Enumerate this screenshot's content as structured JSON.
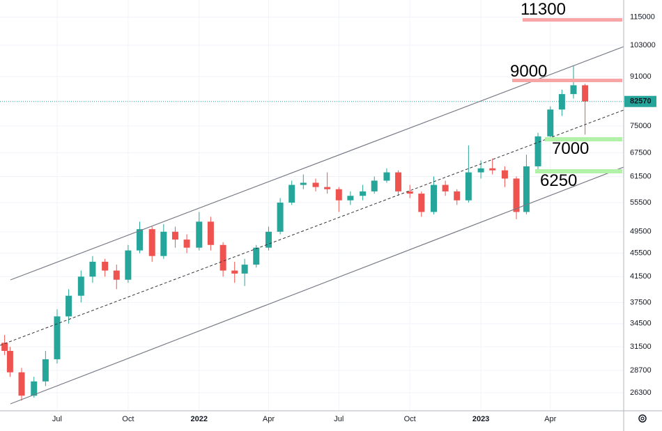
{
  "chart_data": {
    "type": "candlestick",
    "x": [
      "2021-04-24",
      "2021-05-01",
      "2021-05-16",
      "2021-06-01",
      "2021-06-16",
      "2021-07-01",
      "2021-07-16",
      "2021-08-01",
      "2021-08-16",
      "2021-09-01",
      "2021-09-16",
      "2021-10-01",
      "2021-10-16",
      "2021-11-01",
      "2021-11-16",
      "2021-12-01",
      "2021-12-16",
      "2022-01-01",
      "2022-01-16",
      "2022-02-01",
      "2022-02-16",
      "2022-03-01",
      "2022-03-16",
      "2022-04-01",
      "2022-04-16",
      "2022-05-01",
      "2022-05-16",
      "2022-06-01",
      "2022-06-16",
      "2022-07-01",
      "2022-07-16",
      "2022-08-01",
      "2022-08-16",
      "2022-09-01",
      "2022-09-16",
      "2022-10-01",
      "2022-10-16",
      "2022-11-01",
      "2022-11-16",
      "2022-12-01",
      "2022-12-16",
      "2023-01-01",
      "2023-01-16",
      "2023-02-01",
      "2023-02-16",
      "2023-03-01",
      "2023-03-16",
      "2023-04-01",
      "2023-04-16",
      "2023-05-01",
      "2023-05-16"
    ],
    "open": [
      32000,
      31000,
      28500,
      26000,
      27500,
      30000,
      35500,
      38500,
      41500,
      44000,
      42500,
      41000,
      46000,
      50000,
      45000,
      49500,
      48000,
      46500,
      51500,
      47000,
      42500,
      42000,
      43500,
      46500,
      49500,
      55500,
      59500,
      60000,
      59000,
      58500,
      56000,
      57000,
      58000,
      60500,
      62500,
      58000,
      57500,
      53500,
      59500,
      58000,
      56000,
      62500,
      63500,
      63000,
      61000,
      53500,
      64000,
      72000,
      80000,
      85000,
      88000
    ],
    "high": [
      33000,
      31500,
      29000,
      28000,
      31000,
      36500,
      39500,
      42500,
      45000,
      44500,
      43500,
      47000,
      51500,
      50500,
      51000,
      50500,
      49000,
      53500,
      52500,
      47500,
      44000,
      44500,
      47000,
      50500,
      56500,
      60500,
      62000,
      61000,
      62500,
      59000,
      58000,
      59500,
      61500,
      63500,
      63000,
      59500,
      58000,
      61500,
      60500,
      58500,
      69500,
      65500,
      66000,
      64000,
      61500,
      67000,
      73000,
      81000,
      86500,
      95000,
      88500
    ],
    "low": [
      30500,
      28000,
      25500,
      25800,
      27000,
      29500,
      34500,
      37500,
      40500,
      41500,
      39500,
      40500,
      45500,
      44000,
      44500,
      46500,
      45500,
      46000,
      46000,
      41500,
      40500,
      40000,
      43000,
      46000,
      49000,
      55000,
      58500,
      58000,
      57500,
      53500,
      55000,
      56000,
      57500,
      60000,
      57000,
      56500,
      52500,
      53000,
      57000,
      55000,
      55500,
      61000,
      62000,
      59000,
      52000,
      53000,
      63000,
      71500,
      78000,
      83500,
      72500
    ],
    "close": [
      31000,
      28500,
      26000,
      27500,
      30000,
      35500,
      38500,
      41500,
      44000,
      42500,
      41000,
      46000,
      50000,
      45000,
      49500,
      48000,
      46500,
      51500,
      47000,
      42500,
      42000,
      43500,
      46500,
      49500,
      55500,
      59500,
      60000,
      59000,
      58500,
      56000,
      57000,
      58000,
      60500,
      62500,
      58000,
      57500,
      53500,
      59500,
      58000,
      56000,
      62500,
      63500,
      63000,
      61000,
      53500,
      64000,
      72000,
      80000,
      85000,
      88000,
      82570
    ],
    "up_color": "#26a69a",
    "down_color": "#ef5350",
    "xlim": [
      "2021-04-18",
      "2023-07-05"
    ],
    "xticks": [
      {
        "value": "2021-07-01",
        "label": "Jul"
      },
      {
        "value": "2021-10-01",
        "label": "Oct"
      },
      {
        "value": "2022-01-01",
        "label": "2022"
      },
      {
        "value": "2022-04-01",
        "label": "Apr"
      },
      {
        "value": "2022-07-01",
        "label": "Jul"
      },
      {
        "value": "2022-10-01",
        "label": "Oct"
      },
      {
        "value": "2023-01-01",
        "label": "2023"
      },
      {
        "value": "2023-04-01",
        "label": "Apr"
      }
    ],
    "ylim": [
      24500,
      123000
    ],
    "log_scale": true,
    "yticks": [
      26300,
      28700,
      31500,
      34500,
      37500,
      41500,
      45500,
      49500,
      55500,
      61500,
      67500,
      75000,
      91000,
      103000,
      115000
    ],
    "grid": true,
    "last_price": 82570,
    "annotations": [
      "11300",
      "9000",
      "7000",
      "6250"
    ]
  }
}
